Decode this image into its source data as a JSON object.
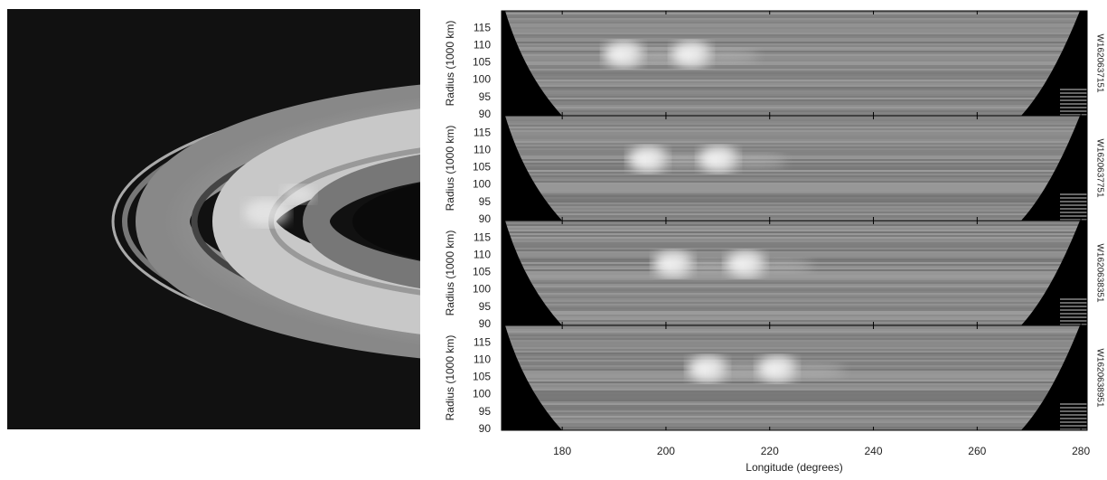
{
  "chart_data": [
    {
      "type": "image",
      "label": "W1620637151",
      "ylabel": "Radius (1000 km)",
      "ylim": [
        89.7,
        120
      ],
      "yticks": [
        90,
        95,
        100,
        105,
        110,
        115
      ],
      "xlim": [
        168.3,
        281.2
      ]
    },
    {
      "type": "image",
      "label": "W1620637751",
      "ylabel": "Radius (1000 km)",
      "ylim": [
        89.7,
        120
      ],
      "yticks": [
        90,
        95,
        100,
        105,
        110,
        115
      ],
      "xlim": [
        168.3,
        281.2
      ]
    },
    {
      "type": "image",
      "label": "W1620638351",
      "ylabel": "Radius (1000 km)",
      "ylim": [
        89.7,
        120
      ],
      "yticks": [
        90,
        95,
        100,
        105,
        110,
        115
      ],
      "xlim": [
        168.3,
        281.2
      ]
    },
    {
      "type": "image",
      "label": "W1620638951",
      "ylabel": "Radius (1000 km)",
      "ylim": [
        89.7,
        120
      ],
      "yticks": [
        90,
        95,
        100,
        105,
        110,
        115
      ],
      "xlim": [
        168.3,
        281.2
      ],
      "xticks": [
        180,
        200,
        220,
        240,
        260,
        280
      ],
      "xlabel": "Longitude (degrees)"
    }
  ]
}
